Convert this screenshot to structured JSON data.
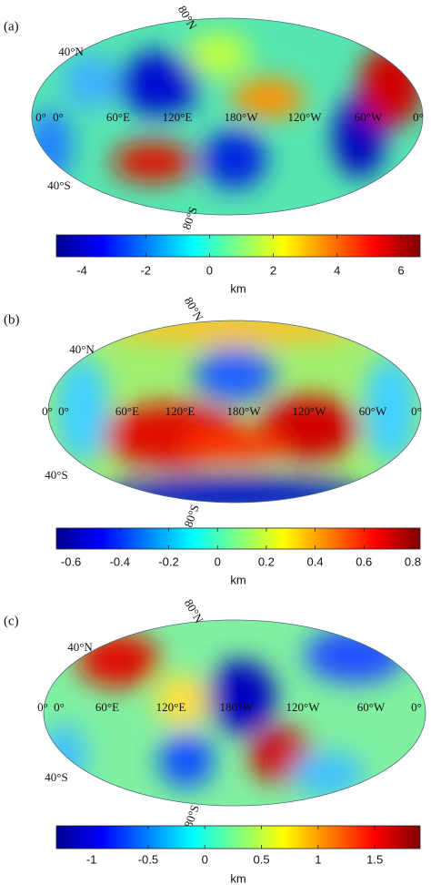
{
  "panels": [
    {
      "label": "(a)",
      "graticule": [
        "80°N",
        "40°N",
        "0°",
        "0°",
        "60°E",
        "120°E",
        "180°W",
        "120°W",
        "60°W",
        "0°",
        "40°S",
        "80°S"
      ],
      "colorbar": {
        "lim": [
          -4.8,
          6.6
        ],
        "ticks": [
          -4,
          -2,
          0,
          2,
          4,
          6
        ],
        "label": "km"
      }
    },
    {
      "label": "(b)",
      "graticule": [
        "80°N",
        "40°N",
        "0°",
        "0°",
        "60°E",
        "120°E",
        "180°W",
        "120°W",
        "60°W",
        "0°",
        "40°S",
        "80°S"
      ],
      "colorbar": {
        "lim": [
          -0.66,
          0.83
        ],
        "ticks": [
          -0.6,
          -0.4,
          -0.2,
          0,
          0.2,
          0.4,
          0.6,
          0.8
        ],
        "label": "km"
      }
    },
    {
      "label": "(c)",
      "graticule": [
        "80°N",
        "40°N",
        "0°",
        "0°",
        "60°E",
        "120°E",
        "180°W",
        "120°W",
        "60°W",
        "0°",
        "40°S",
        "80°S"
      ],
      "colorbar": {
        "lim": [
          -1.31,
          1.9
        ],
        "ticks": [
          -1,
          -0.5,
          0,
          0.5,
          1,
          1.5
        ],
        "label": "km"
      }
    }
  ]
}
